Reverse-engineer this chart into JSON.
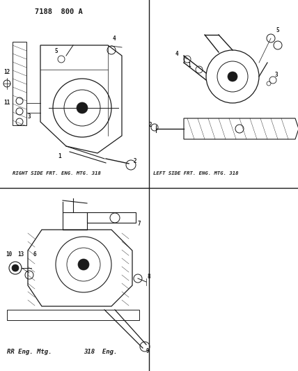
{
  "title": "7188  800 A",
  "bg_color": "#ffffff",
  "line_color": "#1a1a1a",
  "label_right": "RIGHT SIDE FRT. ENG. MTG. 318",
  "label_left": "LEFT SIDE FRT. ENG. MTG. 318",
  "label_bottom_left": "RR Eng. Mtg.",
  "label_bottom_right": "318  Eng.",
  "figsize": [
    4.28,
    5.33
  ],
  "dpi": 100,
  "font_size_title": 7.5,
  "font_size_label": 5.2,
  "font_size_bottom": 6.5,
  "font_size_partnum": 5.5
}
